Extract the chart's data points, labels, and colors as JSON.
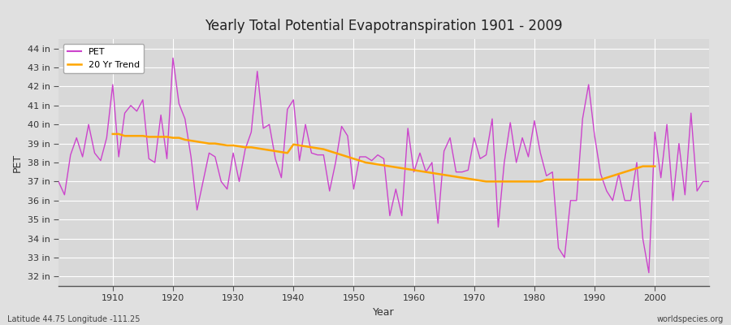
{
  "title": "Yearly Total Potential Evapotranspiration 1901 - 2009",
  "xlabel": "Year",
  "ylabel": "PET",
  "bottom_left_label": "Latitude 44.75 Longitude -111.25",
  "bottom_right_label": "worldspecies.org",
  "pet_color": "#CC44CC",
  "trend_color": "#FFA500",
  "background_color": "#E0E0E0",
  "plot_bg_color": "#D8D8D8",
  "grid_color": "#FFFFFF",
  "ylim": [
    31.5,
    44.5
  ],
  "xlim": [
    1901,
    2009
  ],
  "ytick_labels": [
    "32 in",
    "33 in",
    "34 in",
    "35 in",
    "36 in",
    "37 in",
    "38 in",
    "39 in",
    "40 in",
    "41 in",
    "42 in",
    "43 in",
    "44 in"
  ],
  "ytick_values": [
    32,
    33,
    34,
    35,
    36,
    37,
    38,
    39,
    40,
    41,
    42,
    43,
    44
  ],
  "years": [
    1901,
    1902,
    1903,
    1904,
    1905,
    1906,
    1907,
    1908,
    1909,
    1910,
    1911,
    1912,
    1913,
    1914,
    1915,
    1916,
    1917,
    1918,
    1919,
    1920,
    1921,
    1922,
    1923,
    1924,
    1925,
    1926,
    1927,
    1928,
    1929,
    1930,
    1931,
    1932,
    1933,
    1934,
    1935,
    1936,
    1937,
    1938,
    1939,
    1940,
    1941,
    1942,
    1943,
    1944,
    1945,
    1946,
    1947,
    1948,
    1949,
    1950,
    1951,
    1952,
    1953,
    1954,
    1955,
    1956,
    1957,
    1958,
    1959,
    1960,
    1961,
    1962,
    1963,
    1964,
    1965,
    1966,
    1967,
    1968,
    1969,
    1970,
    1971,
    1972,
    1973,
    1974,
    1975,
    1976,
    1977,
    1978,
    1979,
    1980,
    1981,
    1982,
    1983,
    1984,
    1985,
    1986,
    1987,
    1988,
    1989,
    1990,
    1991,
    1992,
    1993,
    1994,
    1995,
    1996,
    1997,
    1998,
    1999,
    2000,
    2001,
    2002,
    2003,
    2004,
    2005,
    2006,
    2007,
    2008,
    2009
  ],
  "pet_values": [
    37.0,
    36.3,
    38.4,
    39.3,
    38.3,
    40.0,
    38.5,
    38.1,
    39.3,
    42.1,
    38.3,
    40.6,
    41.0,
    40.7,
    41.3,
    38.2,
    38.0,
    40.5,
    38.2,
    43.5,
    41.1,
    40.3,
    38.3,
    35.5,
    37.0,
    38.5,
    38.3,
    37.0,
    36.6,
    38.5,
    37.0,
    38.7,
    39.6,
    42.8,
    39.8,
    40.0,
    38.2,
    37.2,
    40.8,
    41.3,
    38.1,
    40.0,
    38.5,
    38.4,
    38.4,
    36.5,
    38.0,
    39.9,
    39.4,
    36.6,
    38.3,
    38.3,
    38.1,
    38.4,
    38.2,
    35.2,
    36.6,
    35.2,
    39.8,
    37.5,
    38.5,
    37.5,
    38.0,
    34.8,
    38.6,
    39.3,
    37.5,
    37.5,
    37.6,
    39.3,
    38.2,
    38.4,
    40.3,
    34.6,
    38.0,
    40.1,
    38.0,
    39.3,
    38.3,
    40.2,
    38.5,
    37.3,
    37.5,
    33.5,
    33.0,
    36.0,
    36.0,
    40.3,
    42.1,
    39.4,
    37.4,
    36.5,
    36.0,
    37.4,
    36.0,
    36.0,
    38.0,
    34.0,
    32.2,
    39.6,
    37.2,
    40.0,
    36.0,
    39.0,
    36.3,
    40.6,
    36.5,
    37.0,
    37.0
  ],
  "trend_values_years": [
    1910,
    1911,
    1912,
    1913,
    1914,
    1915,
    1916,
    1917,
    1918,
    1919,
    1920,
    1921,
    1922,
    1923,
    1924,
    1925,
    1926,
    1927,
    1928,
    1929,
    1930,
    1931,
    1932,
    1933,
    1934,
    1935,
    1936,
    1937,
    1938,
    1939,
    1940,
    1941,
    1942,
    1943,
    1944,
    1945,
    1946,
    1947,
    1948,
    1949,
    1950,
    1951,
    1952,
    1953,
    1954,
    1955,
    1956,
    1957,
    1958,
    1959,
    1960,
    1961,
    1962,
    1963,
    1964,
    1965,
    1966,
    1967,
    1968,
    1969,
    1970,
    1971,
    1972,
    1973,
    1974,
    1975,
    1976,
    1977,
    1978,
    1979,
    1980,
    1981,
    1982,
    1983,
    1984,
    1985,
    1986,
    1987,
    1988,
    1989,
    1990,
    1991,
    1992,
    1993,
    1994,
    1995,
    1996,
    1997,
    1998,
    1999,
    2000
  ],
  "trend_values": [
    39.5,
    39.5,
    39.4,
    39.4,
    39.4,
    39.4,
    39.35,
    39.35,
    39.35,
    39.35,
    39.3,
    39.3,
    39.2,
    39.15,
    39.1,
    39.05,
    39.0,
    39.0,
    38.95,
    38.9,
    38.9,
    38.85,
    38.8,
    38.8,
    38.75,
    38.7,
    38.65,
    38.6,
    38.55,
    38.5,
    38.95,
    38.9,
    38.85,
    38.8,
    38.75,
    38.7,
    38.6,
    38.5,
    38.4,
    38.3,
    38.2,
    38.1,
    38.0,
    37.95,
    37.9,
    37.85,
    37.8,
    37.75,
    37.7,
    37.65,
    37.6,
    37.55,
    37.5,
    37.45,
    37.4,
    37.35,
    37.3,
    37.25,
    37.2,
    37.15,
    37.1,
    37.05,
    37.0,
    37.0,
    37.0,
    37.0,
    37.0,
    37.0,
    37.0,
    37.0,
    37.0,
    37.0,
    37.1,
    37.1,
    37.1,
    37.1,
    37.1,
    37.1,
    37.1,
    37.1,
    37.1,
    37.1,
    37.2,
    37.3,
    37.4,
    37.5,
    37.6,
    37.7,
    37.8,
    37.8,
    37.8
  ]
}
